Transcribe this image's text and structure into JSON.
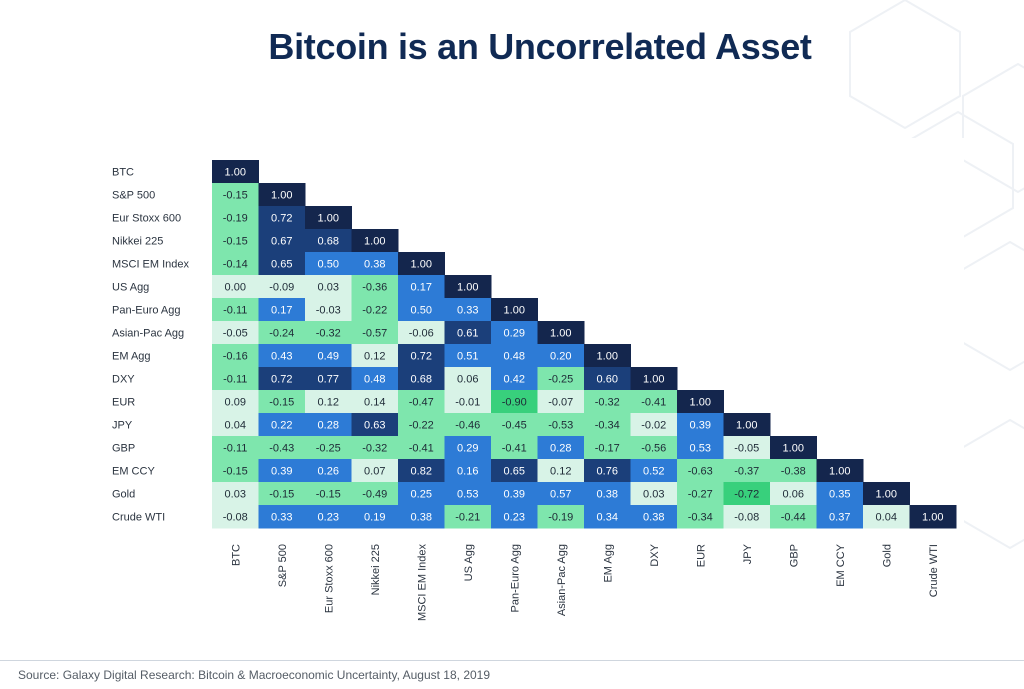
{
  "title": "Bitcoin is an Uncorrelated Asset",
  "source": "Source: Galaxy Digital Research: Bitcoin & Macroeconomic Uncertainty, August 18, 2019",
  "chart_data": {
    "type": "heatmap",
    "title": "",
    "labels": [
      "BTC",
      "S&P 500",
      "Eur Stoxx 600",
      "Nikkei 225",
      "MSCI EM Index",
      "US Agg",
      "Pan-Euro Agg",
      "Asian-Pac Agg",
      "EM Agg",
      "DXY",
      "EUR",
      "JPY",
      "GBP",
      "EM CCY",
      "Gold",
      "Crude WTI"
    ],
    "matrix": [
      [
        "1.00"
      ],
      [
        "-0.15",
        "1.00"
      ],
      [
        "-0.19",
        "0.72",
        "1.00"
      ],
      [
        "-0.15",
        "0.67",
        "0.68",
        "1.00"
      ],
      [
        "-0.14",
        "0.65",
        "0.50",
        "0.38",
        "1.00"
      ],
      [
        "0.00",
        "-0.09",
        "0.03",
        "-0.36",
        "0.17",
        "1.00"
      ],
      [
        "-0.11",
        "0.17",
        "-0.03",
        "-0.22",
        "0.50",
        "0.33",
        "1.00"
      ],
      [
        "-0.05",
        "-0.24",
        "-0.32",
        "-0.57",
        "-0.06",
        "0.61",
        "0.29",
        "1.00"
      ],
      [
        "-0.16",
        "0.43",
        "0.49",
        "0.12",
        "0.72",
        "0.51",
        "0.48",
        "0.20",
        "1.00"
      ],
      [
        "-0.11",
        "0.72",
        "0.77",
        "0.48",
        "0.68",
        "0.06",
        "0.42",
        "-0.25",
        "0.60",
        "1.00"
      ],
      [
        "0.09",
        "-0.15",
        "0.12",
        "0.14",
        "-0.47",
        "-0.01",
        "-0.90",
        "-0.07",
        "-0.32",
        "-0.41",
        "1.00"
      ],
      [
        "0.04",
        "0.22",
        "0.28",
        "0.63",
        "-0.22",
        "-0.46",
        "-0.45",
        "-0.53",
        "-0.34",
        "-0.02",
        "0.39",
        "1.00"
      ],
      [
        "-0.11",
        "-0.43",
        "-0.25",
        "-0.32",
        "-0.41",
        "0.29",
        "-0.41",
        "0.28",
        "-0.17",
        "-0.56",
        "0.53",
        "-0.05",
        "1.00"
      ],
      [
        "-0.15",
        "0.39",
        "0.26",
        "0.07",
        "0.82",
        "0.16",
        "0.65",
        "0.12",
        "0.76",
        "0.52",
        "-0.63",
        "-0.37",
        "-0.38",
        "1.00"
      ],
      [
        "0.03",
        "-0.15",
        "-0.15",
        "-0.49",
        "0.25",
        "0.53",
        "0.39",
        "0.57",
        "0.38",
        "0.03",
        "-0.27",
        "-0.72",
        "0.06",
        "0.35",
        "1.00"
      ],
      [
        "-0.08",
        "0.33",
        "0.23",
        "0.19",
        "0.38",
        "-0.21",
        "0.23",
        "-0.19",
        "0.34",
        "0.38",
        "-0.34",
        "-0.08",
        "-0.44",
        "0.37",
        "0.04",
        "1.00"
      ]
    ],
    "colors": {
      "diagonal": "#14264d",
      "high_positive": "#1b3f7a",
      "positive": "#2d7bd6",
      "light_positive": "#d8f3e7",
      "negative": "#7ee6ad",
      "strong_negative": "#38d07c"
    }
  }
}
